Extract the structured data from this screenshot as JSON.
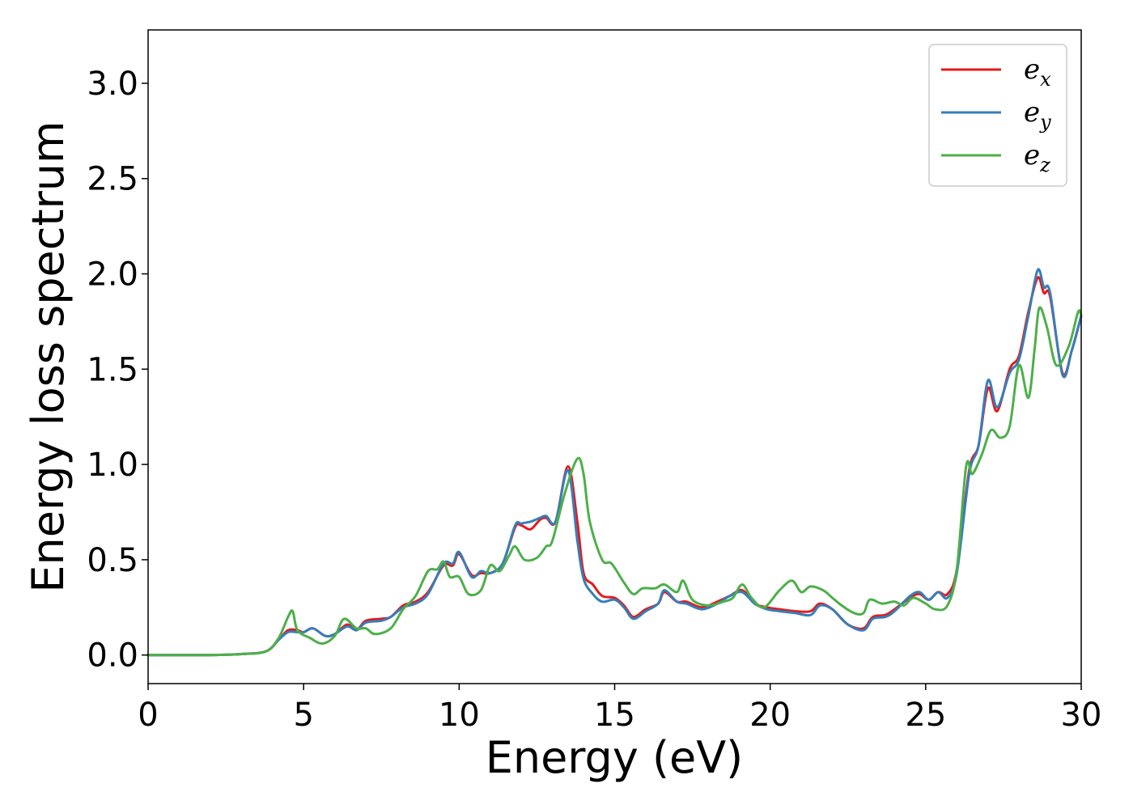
{
  "chart_data": {
    "type": "line",
    "title": "",
    "xlabel": "Energy (eV)",
    "ylabel": "Energy loss spectrum",
    "xlim": [
      0,
      30
    ],
    "ylim": [
      -0.15,
      3.28
    ],
    "x_ticks": [
      0,
      5,
      10,
      15,
      20,
      25,
      30
    ],
    "x_tick_labels": [
      "0",
      "5",
      "10",
      "15",
      "20",
      "25",
      "30"
    ],
    "y_ticks": [
      0.0,
      0.5,
      1.0,
      1.5,
      2.0,
      2.5,
      3.0
    ],
    "y_tick_labels": [
      "0.0",
      "0.5",
      "1.0",
      "1.5",
      "2.0",
      "2.5",
      "3.0"
    ],
    "grid": false,
    "legend_position": "top-right",
    "series": [
      {
        "name": "e",
        "subscript": "x",
        "color": "#e41a1c",
        "points": [
          [
            0,
            0
          ],
          [
            2,
            0
          ],
          [
            3,
            0.005
          ],
          [
            3.8,
            0.02
          ],
          [
            4.2,
            0.08
          ],
          [
            4.5,
            0.13
          ],
          [
            4.8,
            0.13
          ],
          [
            5.0,
            0.12
          ],
          [
            5.3,
            0.14
          ],
          [
            5.7,
            0.1
          ],
          [
            6.0,
            0.11
          ],
          [
            6.4,
            0.16
          ],
          [
            6.7,
            0.13
          ],
          [
            7.0,
            0.18
          ],
          [
            7.5,
            0.19
          ],
          [
            7.8,
            0.2
          ],
          [
            8.2,
            0.26
          ],
          [
            8.6,
            0.28
          ],
          [
            9.0,
            0.33
          ],
          [
            9.5,
            0.47
          ],
          [
            9.8,
            0.47
          ],
          [
            10.0,
            0.53
          ],
          [
            10.4,
            0.42
          ],
          [
            10.7,
            0.43
          ],
          [
            11.0,
            0.43
          ],
          [
            11.4,
            0.48
          ],
          [
            11.8,
            0.67
          ],
          [
            12.0,
            0.68
          ],
          [
            12.3,
            0.66
          ],
          [
            12.6,
            0.71
          ],
          [
            12.8,
            0.72
          ],
          [
            13.1,
            0.7
          ],
          [
            13.5,
            0.99
          ],
          [
            13.8,
            0.7
          ],
          [
            14.0,
            0.43
          ],
          [
            14.3,
            0.37
          ],
          [
            14.6,
            0.31
          ],
          [
            15.0,
            0.3
          ],
          [
            15.3,
            0.26
          ],
          [
            15.6,
            0.2
          ],
          [
            16.0,
            0.24
          ],
          [
            16.4,
            0.27
          ],
          [
            16.6,
            0.33
          ],
          [
            17.0,
            0.28
          ],
          [
            17.3,
            0.28
          ],
          [
            17.8,
            0.25
          ],
          [
            18.3,
            0.28
          ],
          [
            18.7,
            0.31
          ],
          [
            19.1,
            0.34
          ],
          [
            19.5,
            0.27
          ],
          [
            19.9,
            0.25
          ],
          [
            20.3,
            0.24
          ],
          [
            20.8,
            0.23
          ],
          [
            21.3,
            0.23
          ],
          [
            21.6,
            0.27
          ],
          [
            22.0,
            0.24
          ],
          [
            22.5,
            0.16
          ],
          [
            23.0,
            0.14
          ],
          [
            23.3,
            0.2
          ],
          [
            23.7,
            0.21
          ],
          [
            24.0,
            0.24
          ],
          [
            24.5,
            0.3
          ],
          [
            24.8,
            0.32
          ],
          [
            25.1,
            0.29
          ],
          [
            25.4,
            0.33
          ],
          [
            25.7,
            0.32
          ],
          [
            26.0,
            0.45
          ],
          [
            26.4,
            0.97
          ],
          [
            26.7,
            1.1
          ],
          [
            27.0,
            1.4
          ],
          [
            27.3,
            1.28
          ],
          [
            27.7,
            1.5
          ],
          [
            28.0,
            1.57
          ],
          [
            28.3,
            1.8
          ],
          [
            28.6,
            1.98
          ],
          [
            28.8,
            1.9
          ],
          [
            29.0,
            1.88
          ],
          [
            29.4,
            1.48
          ],
          [
            29.7,
            1.6
          ],
          [
            30.0,
            1.78
          ]
        ]
      },
      {
        "name": "e",
        "subscript": "y",
        "color": "#377eb8",
        "points": [
          [
            0,
            0
          ],
          [
            2,
            0
          ],
          [
            3,
            0.005
          ],
          [
            3.8,
            0.02
          ],
          [
            4.2,
            0.08
          ],
          [
            4.5,
            0.12
          ],
          [
            4.8,
            0.12
          ],
          [
            5.0,
            0.12
          ],
          [
            5.3,
            0.14
          ],
          [
            5.7,
            0.1
          ],
          [
            6.0,
            0.11
          ],
          [
            6.4,
            0.15
          ],
          [
            6.7,
            0.13
          ],
          [
            7.0,
            0.17
          ],
          [
            7.5,
            0.18
          ],
          [
            7.8,
            0.2
          ],
          [
            8.2,
            0.25
          ],
          [
            8.6,
            0.27
          ],
          [
            9.0,
            0.32
          ],
          [
            9.5,
            0.48
          ],
          [
            9.8,
            0.48
          ],
          [
            10.0,
            0.54
          ],
          [
            10.4,
            0.41
          ],
          [
            10.7,
            0.44
          ],
          [
            11.0,
            0.43
          ],
          [
            11.4,
            0.48
          ],
          [
            11.8,
            0.68
          ],
          [
            12.0,
            0.69
          ],
          [
            12.3,
            0.7
          ],
          [
            12.6,
            0.72
          ],
          [
            12.8,
            0.73
          ],
          [
            13.1,
            0.7
          ],
          [
            13.5,
            0.97
          ],
          [
            13.8,
            0.6
          ],
          [
            14.0,
            0.4
          ],
          [
            14.3,
            0.32
          ],
          [
            14.6,
            0.28
          ],
          [
            15.0,
            0.29
          ],
          [
            15.3,
            0.25
          ],
          [
            15.6,
            0.19
          ],
          [
            16.0,
            0.23
          ],
          [
            16.4,
            0.27
          ],
          [
            16.6,
            0.34
          ],
          [
            17.0,
            0.28
          ],
          [
            17.3,
            0.27
          ],
          [
            17.8,
            0.24
          ],
          [
            18.3,
            0.27
          ],
          [
            18.7,
            0.31
          ],
          [
            19.1,
            0.33
          ],
          [
            19.5,
            0.27
          ],
          [
            19.9,
            0.24
          ],
          [
            20.3,
            0.23
          ],
          [
            20.8,
            0.22
          ],
          [
            21.3,
            0.21
          ],
          [
            21.6,
            0.26
          ],
          [
            22.0,
            0.24
          ],
          [
            22.5,
            0.16
          ],
          [
            23.0,
            0.13
          ],
          [
            23.3,
            0.19
          ],
          [
            23.7,
            0.2
          ],
          [
            24.0,
            0.23
          ],
          [
            24.5,
            0.31
          ],
          [
            24.8,
            0.33
          ],
          [
            25.1,
            0.29
          ],
          [
            25.4,
            0.33
          ],
          [
            25.7,
            0.3
          ],
          [
            26.0,
            0.43
          ],
          [
            26.4,
            0.95
          ],
          [
            26.7,
            1.1
          ],
          [
            27.0,
            1.44
          ],
          [
            27.3,
            1.3
          ],
          [
            27.7,
            1.48
          ],
          [
            28.0,
            1.55
          ],
          [
            28.3,
            1.78
          ],
          [
            28.6,
            2.02
          ],
          [
            28.8,
            1.93
          ],
          [
            29.0,
            1.9
          ],
          [
            29.4,
            1.47
          ],
          [
            29.7,
            1.6
          ],
          [
            30.0,
            1.78
          ]
        ]
      },
      {
        "name": "e",
        "subscript": "z",
        "color": "#4daf4a",
        "points": [
          [
            0,
            0
          ],
          [
            2,
            0
          ],
          [
            3,
            0.005
          ],
          [
            3.8,
            0.02
          ],
          [
            4.2,
            0.09
          ],
          [
            4.5,
            0.2
          ],
          [
            4.65,
            0.23
          ],
          [
            4.8,
            0.13
          ],
          [
            5.2,
            0.09
          ],
          [
            5.6,
            0.06
          ],
          [
            6.0,
            0.1
          ],
          [
            6.3,
            0.19
          ],
          [
            6.7,
            0.14
          ],
          [
            7.0,
            0.14
          ],
          [
            7.3,
            0.11
          ],
          [
            7.8,
            0.14
          ],
          [
            8.2,
            0.24
          ],
          [
            8.6,
            0.31
          ],
          [
            9.0,
            0.44
          ],
          [
            9.3,
            0.45
          ],
          [
            9.5,
            0.49
          ],
          [
            9.7,
            0.41
          ],
          [
            10.0,
            0.41
          ],
          [
            10.3,
            0.32
          ],
          [
            10.7,
            0.34
          ],
          [
            11.0,
            0.47
          ],
          [
            11.3,
            0.44
          ],
          [
            11.6,
            0.52
          ],
          [
            11.8,
            0.57
          ],
          [
            12.1,
            0.5
          ],
          [
            12.5,
            0.51
          ],
          [
            12.8,
            0.57
          ],
          [
            13.0,
            0.6
          ],
          [
            13.4,
            0.85
          ],
          [
            13.8,
            1.03
          ],
          [
            14.0,
            0.95
          ],
          [
            14.2,
            0.7
          ],
          [
            14.6,
            0.5
          ],
          [
            14.9,
            0.48
          ],
          [
            15.3,
            0.38
          ],
          [
            15.6,
            0.32
          ],
          [
            15.9,
            0.35
          ],
          [
            16.3,
            0.35
          ],
          [
            16.6,
            0.37
          ],
          [
            17.0,
            0.33
          ],
          [
            17.2,
            0.39
          ],
          [
            17.5,
            0.29
          ],
          [
            18.0,
            0.26
          ],
          [
            18.5,
            0.28
          ],
          [
            18.8,
            0.3
          ],
          [
            19.1,
            0.37
          ],
          [
            19.4,
            0.3
          ],
          [
            19.8,
            0.25
          ],
          [
            20.3,
            0.34
          ],
          [
            20.7,
            0.39
          ],
          [
            21.0,
            0.33
          ],
          [
            21.3,
            0.36
          ],
          [
            21.7,
            0.34
          ],
          [
            22.0,
            0.3
          ],
          [
            22.3,
            0.26
          ],
          [
            22.7,
            0.22
          ],
          [
            23.0,
            0.22
          ],
          [
            23.2,
            0.29
          ],
          [
            23.6,
            0.27
          ],
          [
            24.0,
            0.28
          ],
          [
            24.3,
            0.26
          ],
          [
            24.6,
            0.3
          ],
          [
            25.0,
            0.27
          ],
          [
            25.3,
            0.24
          ],
          [
            25.7,
            0.26
          ],
          [
            26.0,
            0.45
          ],
          [
            26.3,
            0.99
          ],
          [
            26.5,
            0.95
          ],
          [
            26.8,
            1.05
          ],
          [
            27.1,
            1.18
          ],
          [
            27.4,
            1.14
          ],
          [
            27.7,
            1.2
          ],
          [
            28.0,
            1.52
          ],
          [
            28.3,
            1.35
          ],
          [
            28.5,
            1.6
          ],
          [
            28.65,
            1.82
          ],
          [
            28.9,
            1.72
          ],
          [
            29.2,
            1.52
          ],
          [
            29.6,
            1.62
          ],
          [
            29.9,
            1.8
          ],
          [
            30.0,
            1.78
          ]
        ]
      }
    ]
  }
}
